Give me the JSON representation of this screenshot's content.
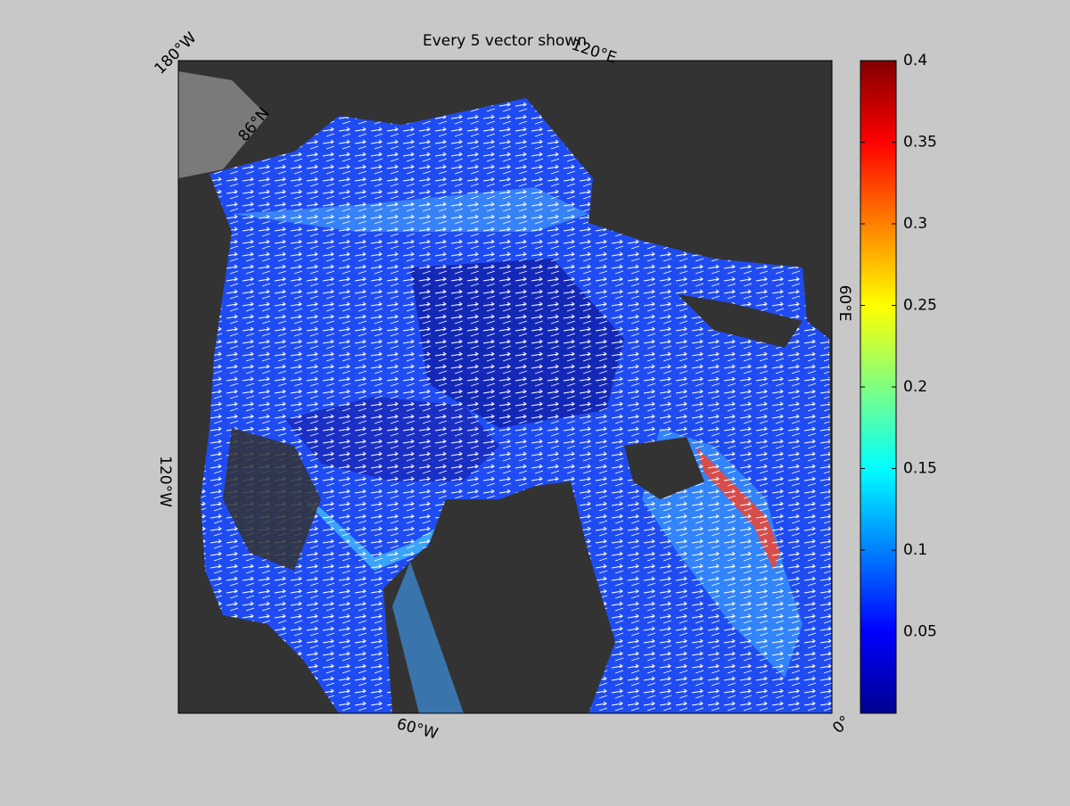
{
  "title": "Every 5 vector shown",
  "graticule_labels": [
    "180°W",
    "120°E",
    "60°E",
    "0°",
    "60°W",
    "120°W",
    "86°N"
  ],
  "colorbar": {
    "lim": [
      0,
      0.4
    ],
    "ticks": [
      0.05,
      0.1,
      0.15,
      0.2,
      0.25,
      0.3,
      0.35,
      0.4
    ],
    "colormap": [
      "#00008f",
      "#0000ff",
      "#0080ff",
      "#00ffff",
      "#80ff80",
      "#ffff00",
      "#ff8000",
      "#ff0000",
      "#800000"
    ]
  }
}
